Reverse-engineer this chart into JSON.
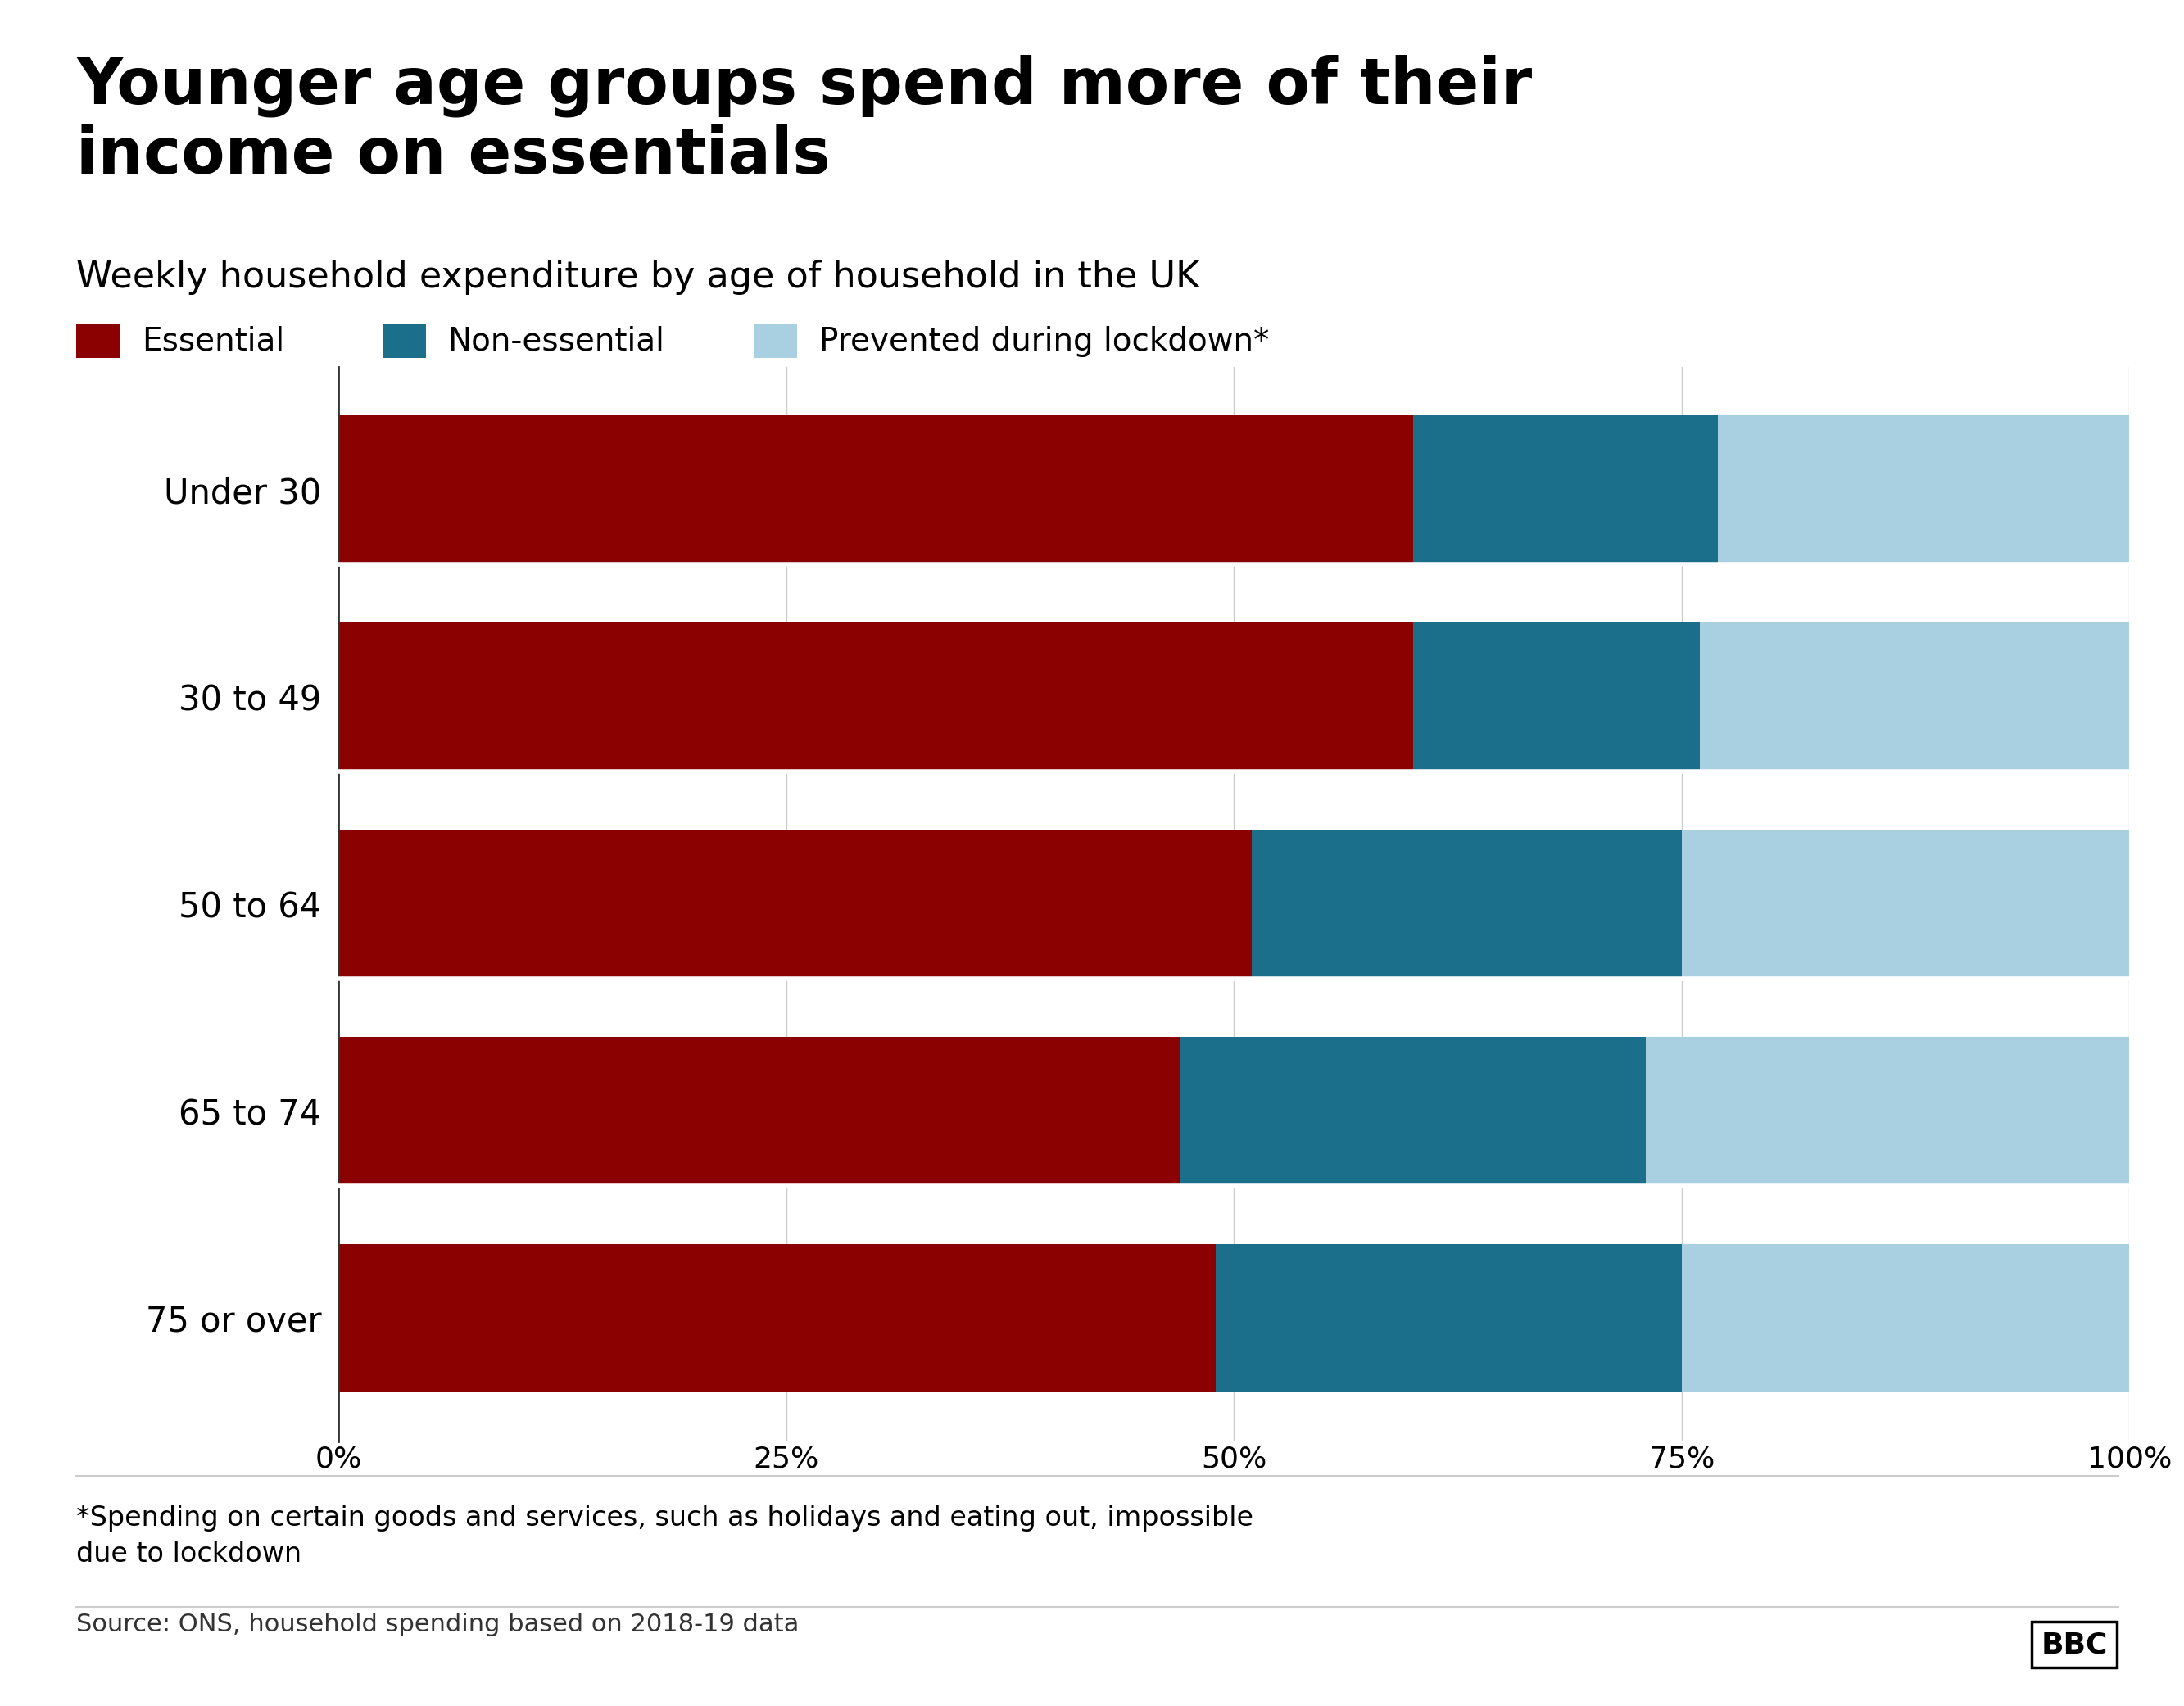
{
  "title": "Younger age groups spend more of their\nincome on essentials",
  "subtitle": "Weekly household expenditure by age of household in the UK",
  "categories": [
    "Under 30",
    "30 to 49",
    "50 to 64",
    "65 to 74",
    "75 or over"
  ],
  "essential": [
    60,
    60,
    51,
    47,
    49
  ],
  "non_essential": [
    17,
    16,
    24,
    26,
    26
  ],
  "prevented": [
    23,
    24,
    25,
    27,
    25
  ],
  "colors": {
    "essential": "#8B0000",
    "non_essential": "#1B6F8A",
    "prevented": "#A8D0E0"
  },
  "legend_labels": [
    "Essential",
    "Non-essential",
    "Prevented during lockdown*"
  ],
  "footnote": "*Spending on certain goods and services, such as holidays and eating out, impossible\ndue to lockdown",
  "source": "Source: ONS, household spending based on 2018-19 data",
  "bbc_label": "BBC",
  "xlim": [
    0,
    100
  ],
  "xticks": [
    0,
    25,
    50,
    75,
    100
  ],
  "xtick_labels": [
    "0%",
    "25%",
    "50%",
    "75%",
    "100%"
  ],
  "background_color": "#ffffff",
  "bar_height": 0.72
}
